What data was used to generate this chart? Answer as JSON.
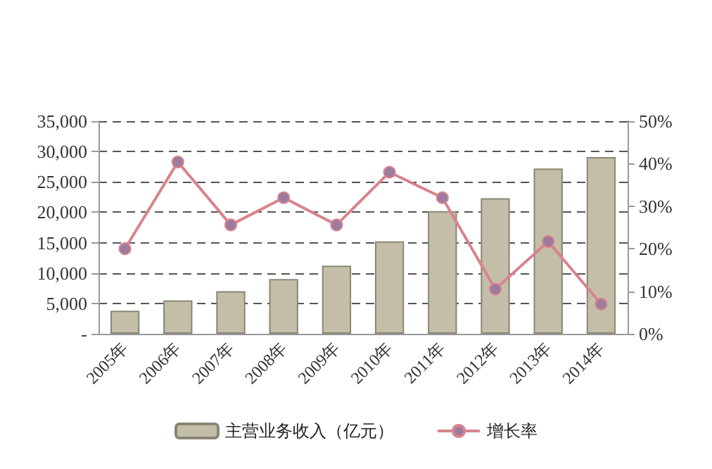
{
  "chart_data": {
    "type": "bar",
    "categories": [
      "2005年",
      "2006年",
      "2007年",
      "2008年",
      "2009年",
      "2010年",
      "2011年",
      "2012年",
      "2013年",
      "2014年"
    ],
    "series": [
      {
        "name": "主营业务收入（亿元）",
        "color": "#c4bea8",
        "values": [
          3800,
          5500,
          7000,
          9000,
          11200,
          15200,
          20200,
          22300,
          27200,
          29100
        ]
      },
      {
        "name": "增长率",
        "type": "line",
        "axis": "y2",
        "color": "#d9838d",
        "marker": "circle",
        "values": [
          20,
          40.4,
          25.6,
          32,
          25.6,
          38,
          32,
          10.5,
          21.7,
          7
        ]
      }
    ],
    "ylim": [
      0,
      35000
    ],
    "yticks": [
      {
        "value": 0,
        "label": "-"
      },
      {
        "value": 5000,
        "label": "5,000"
      },
      {
        "value": 10000,
        "label": "10,000"
      },
      {
        "value": 15000,
        "label": "15,000"
      },
      {
        "value": 20000,
        "label": "20,000"
      },
      {
        "value": 25000,
        "label": "25,000"
      },
      {
        "value": 30000,
        "label": "30,000"
      },
      {
        "value": 35000,
        "label": "35,000"
      }
    ],
    "y2lim": [
      0,
      50
    ],
    "y2ticks": [
      {
        "value": 0,
        "label": "0%"
      },
      {
        "value": 10,
        "label": "10%"
      },
      {
        "value": 20,
        "label": "20%"
      },
      {
        "value": 30,
        "label": "30%"
      },
      {
        "value": 40,
        "label": "40%"
      },
      {
        "value": 50,
        "label": "50%"
      }
    ],
    "grid": "y",
    "legend": "bottom",
    "line_style": "solid"
  }
}
